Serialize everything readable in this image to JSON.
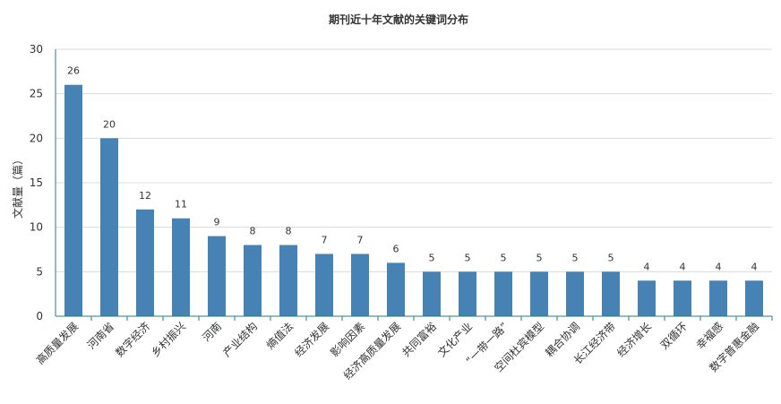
{
  "chart_data": {
    "type": "bar",
    "title": "期刊近十年文献的关键词分布",
    "xlabel": "",
    "ylabel": "文献量（篇）",
    "ylim": [
      0,
      30
    ],
    "yticks": [
      0,
      5,
      10,
      15,
      20,
      25,
      30
    ],
    "grid": true,
    "legend": "none",
    "categories": [
      "高质量发展",
      "河南省",
      "数字经济",
      "乡村振兴",
      "河南",
      "产业结构",
      "熵值法",
      "经济发展",
      "影响因素",
      "经济高质量发展",
      "共同富裕",
      "文化产业",
      "“一带一路”",
      "空间杜宾模型",
      "耦合协调",
      "长江经济带",
      "经济增长",
      "双循环",
      "幸福感",
      "数字普惠金融"
    ],
    "values": [
      26,
      20,
      12,
      11,
      9,
      8,
      8,
      7,
      7,
      6,
      5,
      5,
      5,
      5,
      5,
      5,
      4,
      4,
      4,
      4
    ],
    "colors": {
      "bar": "#4682b4",
      "axis": "#2a7b7b",
      "grid": "#d9d9d9",
      "text": "#333333"
    }
  }
}
